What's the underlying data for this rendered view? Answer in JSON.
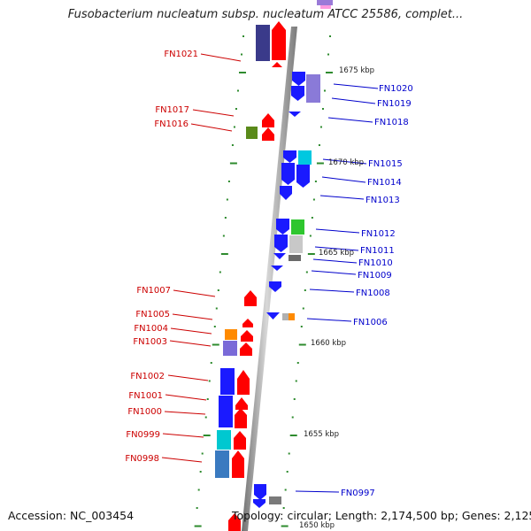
{
  "header": {
    "title": "Fusobacterium nucleatum subsp. nucleatum ATCC 25586, complet..."
  },
  "footer": {
    "accession": "Accession: NC_003454",
    "summary": "Topology: circular; Length: 2,174,500 bp; Genes: 2,125"
  },
  "colors": {
    "reverse_label": "#cc0000",
    "forward_label": "#0000cc",
    "tick": "#2e8b2e",
    "backbone": "#9a9a9a"
  },
  "scale_labels": [
    {
      "text": "1675 kbp"
    },
    {
      "text": "1670 kbp"
    },
    {
      "text": "1665 kbp"
    },
    {
      "text": "1660 kbp"
    },
    {
      "text": "1655 kbp"
    },
    {
      "text": "1650 kbp"
    }
  ],
  "genes_reverse_strand": [
    {
      "id": "FN1021"
    },
    {
      "id": "FN1017"
    },
    {
      "id": "FN1016"
    },
    {
      "id": "FN1007"
    },
    {
      "id": "FN1005"
    },
    {
      "id": "FN1004"
    },
    {
      "id": "FN1003"
    },
    {
      "id": "FN1002"
    },
    {
      "id": "FN1001"
    },
    {
      "id": "FN1000"
    },
    {
      "id": "FN0999"
    },
    {
      "id": "FN0998"
    }
  ],
  "genes_forward_strand": [
    {
      "id": "FN1020"
    },
    {
      "id": "FN1019"
    },
    {
      "id": "FN1018"
    },
    {
      "id": "FN1015"
    },
    {
      "id": "FN1014"
    },
    {
      "id": "FN1013"
    },
    {
      "id": "FN1012"
    },
    {
      "id": "FN1011"
    },
    {
      "id": "FN1010"
    },
    {
      "id": "FN1009"
    },
    {
      "id": "FN1008"
    },
    {
      "id": "FN1006"
    },
    {
      "id": "FN0997"
    }
  ]
}
